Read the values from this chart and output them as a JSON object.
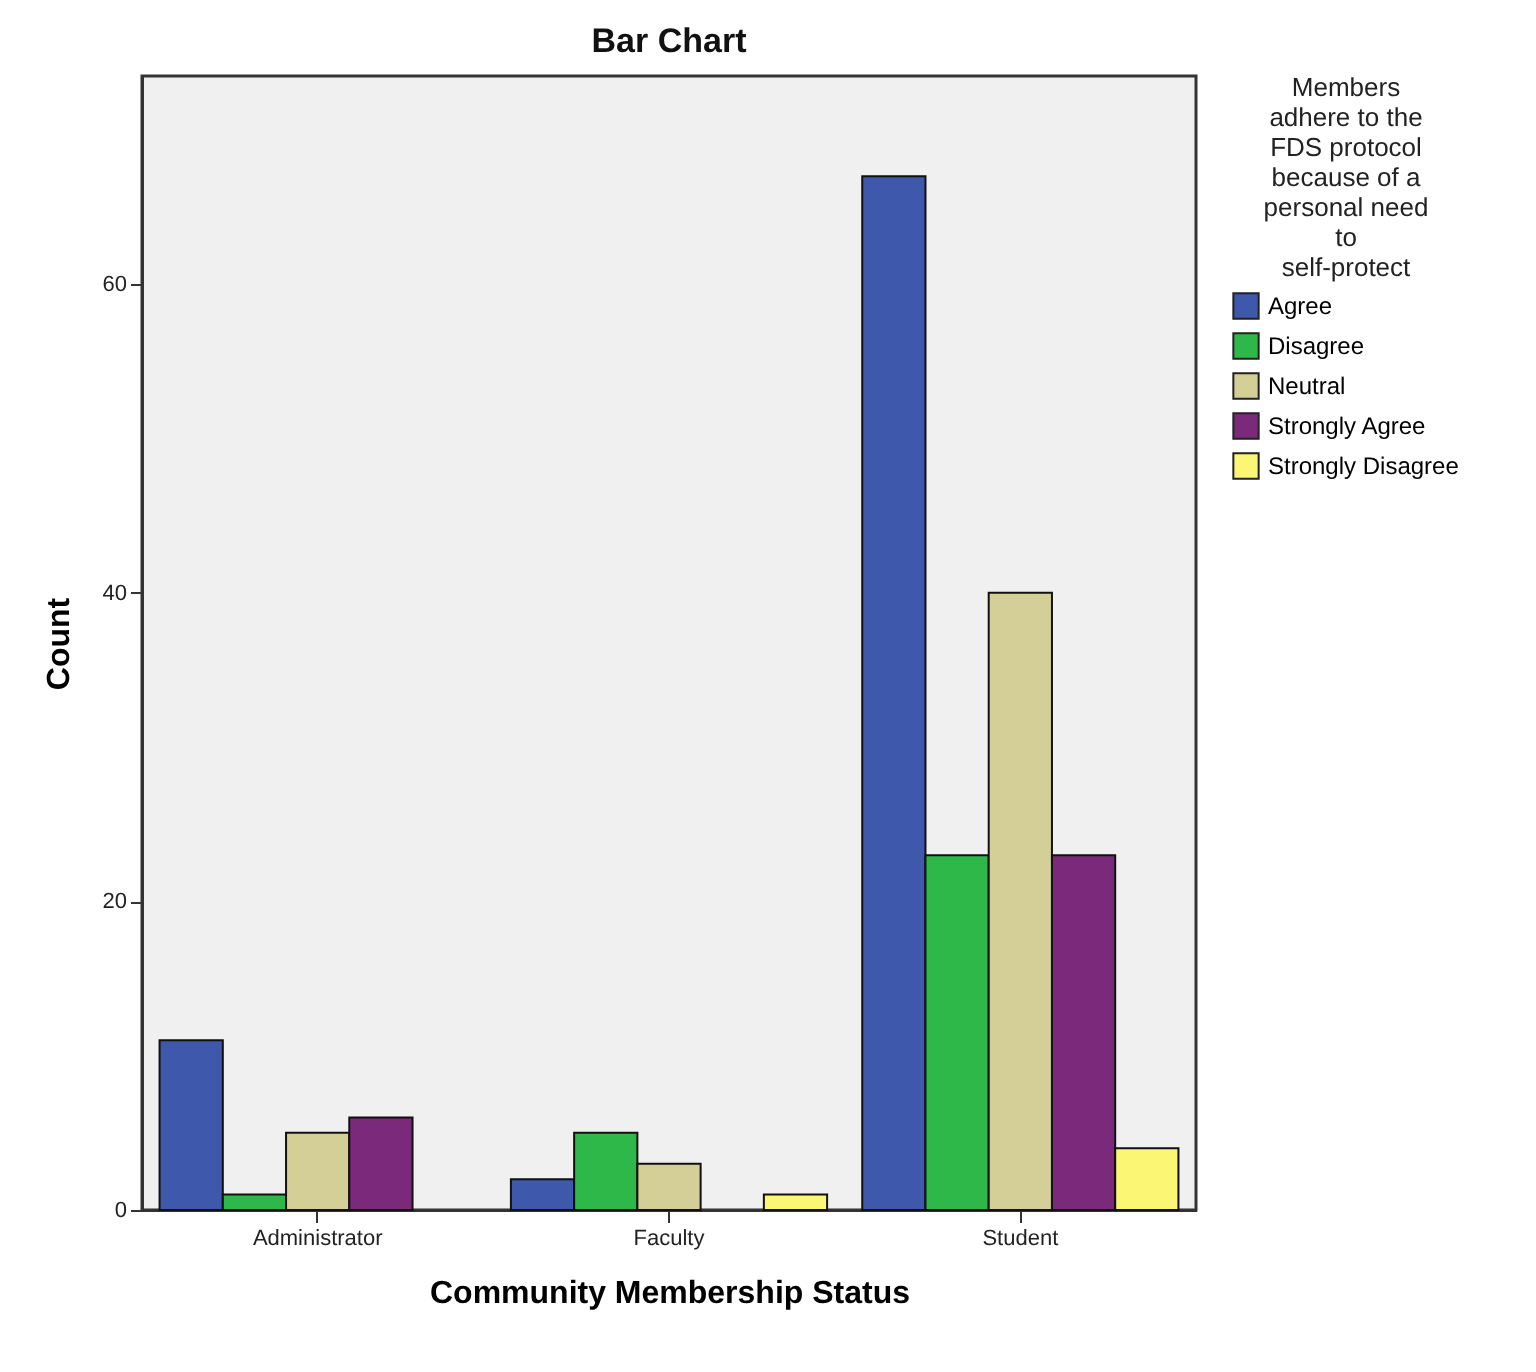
{
  "chart_data": {
    "type": "bar",
    "title": "Bar Chart",
    "xlabel": "Community Membership Status",
    "ylabel": "Count",
    "legend_title": "Members adhere to the FDS protocol because of a personal need to self-protect",
    "categories": [
      "Administrator",
      "Faculty",
      "Student"
    ],
    "series": [
      {
        "name": "Agree",
        "color": "#3e58ac",
        "values": [
          11,
          2,
          67
        ]
      },
      {
        "name": "Disagree",
        "color": "#2fb84a",
        "values": [
          1,
          5,
          23
        ]
      },
      {
        "name": "Neutral",
        "color": "#d4cf97",
        "values": [
          5,
          3,
          40
        ]
      },
      {
        "name": "Strongly Agree",
        "color": "#7b2a7b",
        "values": [
          6,
          null,
          23
        ]
      },
      {
        "name": "Strongly Disagree",
        "color": "#fbf774",
        "values": [
          null,
          1,
          4
        ]
      }
    ],
    "ylim": [
      0,
      73.5
    ],
    "yticks": [
      0,
      20,
      40,
      60
    ],
    "grid": false,
    "legend": "top right"
  }
}
